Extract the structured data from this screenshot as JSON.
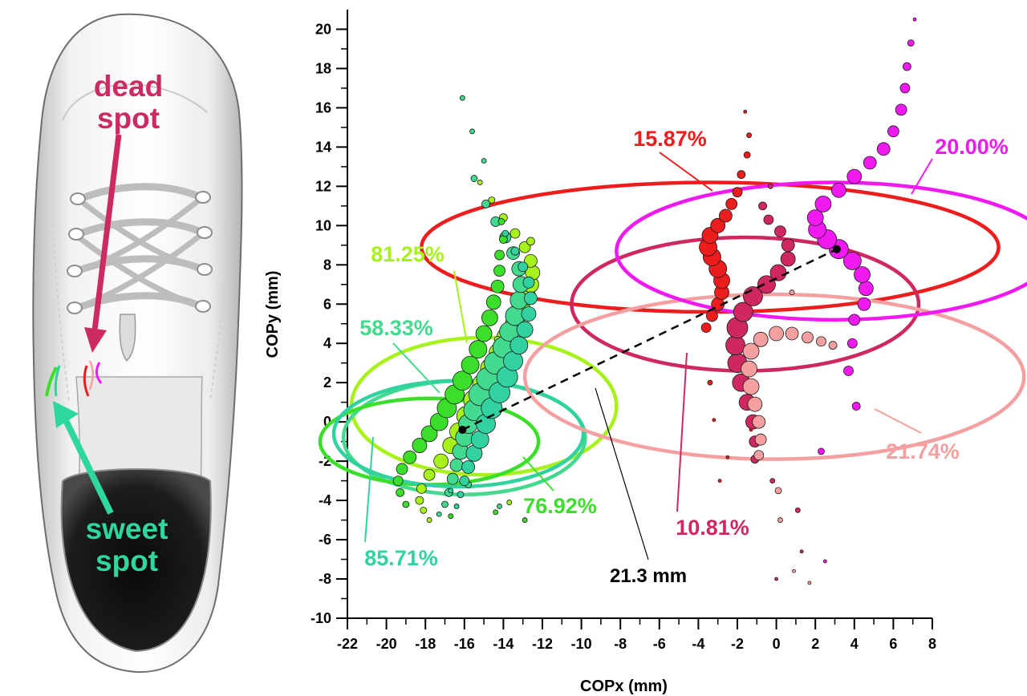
{
  "shoe_panel": {
    "dead_spot_label": [
      "dead",
      "spot"
    ],
    "sweet_spot_label": [
      "sweet",
      "spot"
    ],
    "dead_color": "#cc2a62",
    "sweet_color": "#2fd7a0"
  },
  "chart_data": {
    "type": "scatter",
    "title": "",
    "xlabel": "COPx (mm)",
    "ylabel": "COPy (mm)",
    "xlim": [
      -22,
      8
    ],
    "ylim": [
      -10,
      21
    ],
    "x_ticks": [
      -22,
      -20,
      -18,
      -16,
      -14,
      -12,
      -10,
      -8,
      -6,
      -4,
      -2,
      0,
      2,
      4,
      6,
      8
    ],
    "y_ticks": [
      -10,
      -8,
      -6,
      -4,
      -2,
      0,
      2,
      4,
      6,
      8,
      10,
      12,
      14,
      16,
      18,
      20
    ],
    "grid": false,
    "distance_annotation": {
      "label": "21.3 mm",
      "from": [
        -16.1,
        -0.4
      ],
      "to": [
        3.1,
        8.8
      ]
    },
    "series": [
      {
        "color": "#a6f21a",
        "points": [
          [
            -17.8,
            -5.0
          ],
          [
            -18.1,
            -4.5
          ],
          [
            -18.3,
            -4.0
          ],
          [
            -18.2,
            -3.4
          ],
          [
            -17.8,
            -2.7
          ],
          [
            -17.2,
            -2.0
          ],
          [
            -16.7,
            -1.2
          ],
          [
            -16.3,
            -0.5
          ],
          [
            -15.9,
            0.3
          ],
          [
            -15.5,
            1.1
          ],
          [
            -15.0,
            1.9
          ],
          [
            -14.6,
            2.7
          ],
          [
            -14.2,
            3.5
          ],
          [
            -13.8,
            4.3
          ],
          [
            -13.4,
            5.0
          ],
          [
            -13.1,
            5.7
          ],
          [
            -12.8,
            6.4
          ],
          [
            -12.6,
            7.0
          ],
          [
            -12.5,
            7.6
          ],
          [
            -12.6,
            8.2
          ],
          [
            -12.9,
            8.9
          ],
          [
            -13.4,
            9.6
          ],
          [
            -14.0,
            10.4
          ],
          [
            -14.6,
            11.3
          ],
          [
            -15.2,
            12.2
          ],
          [
            -14.3,
            4.2
          ],
          [
            -13.7,
            -4.1
          ],
          [
            -12.6,
            9.2
          ]
        ],
        "sizes": [
          3,
          4,
          5,
          6,
          7,
          9,
          10,
          11,
          12,
          13,
          14,
          14,
          13,
          13,
          12,
          12,
          11,
          10,
          9,
          8,
          7,
          6,
          5,
          4,
          3,
          4,
          3,
          5
        ],
        "ellipse": {
          "cx": -15.0,
          "cy": 0.8,
          "rx": 6.8,
          "ry": 3.5
        },
        "percent": "81.25%",
        "percent_color": "#a6f21a"
      },
      {
        "color": "#43d98f",
        "points": [
          [
            -17.3,
            -4.7
          ],
          [
            -17.0,
            -4.2
          ],
          [
            -16.8,
            -3.6
          ],
          [
            -16.6,
            -2.9
          ],
          [
            -16.4,
            -2.2
          ],
          [
            -16.2,
            -1.5
          ],
          [
            -16.0,
            -0.8
          ],
          [
            -15.8,
            -0.1
          ],
          [
            -15.5,
            0.6
          ],
          [
            -15.2,
            1.4
          ],
          [
            -14.8,
            2.2
          ],
          [
            -14.4,
            3.0
          ],
          [
            -14.0,
            3.8
          ],
          [
            -13.7,
            4.6
          ],
          [
            -13.4,
            5.4
          ],
          [
            -13.2,
            6.2
          ],
          [
            -13.1,
            7.0
          ],
          [
            -13.2,
            7.8
          ],
          [
            -13.5,
            8.6
          ],
          [
            -13.9,
            9.4
          ],
          [
            -14.4,
            10.2
          ],
          [
            -14.9,
            11.1
          ],
          [
            -15.5,
            12.4
          ],
          [
            -15.6,
            14.8
          ],
          [
            -16.1,
            16.5
          ],
          [
            -15.0,
            13.3
          ],
          [
            -14.2,
            -4.3
          ],
          [
            -15.8,
            -3.2
          ]
        ],
        "sizes": [
          3,
          4,
          5,
          7,
          8,
          10,
          11,
          12,
          13,
          14,
          14,
          14,
          13,
          12,
          12,
          11,
          10,
          9,
          8,
          7,
          6,
          5,
          4,
          3,
          3,
          3,
          3,
          4
        ],
        "ellipse": {
          "cx": -16.0,
          "cy": -0.8,
          "rx": 6.2,
          "ry": 2.9
        },
        "percent": "58.33%",
        "percent_color": "#43d98f"
      },
      {
        "color": "#3bdf2a",
        "points": [
          [
            -19.0,
            -4.2
          ],
          [
            -19.3,
            -3.6
          ],
          [
            -19.4,
            -3.0
          ],
          [
            -19.2,
            -2.4
          ],
          [
            -18.8,
            -1.8
          ],
          [
            -18.3,
            -1.2
          ],
          [
            -17.8,
            -0.6
          ],
          [
            -17.3,
            0.0
          ],
          [
            -16.9,
            0.7
          ],
          [
            -16.5,
            1.4
          ],
          [
            -16.1,
            2.1
          ],
          [
            -15.7,
            2.9
          ],
          [
            -15.3,
            3.7
          ],
          [
            -15.0,
            4.5
          ],
          [
            -14.7,
            5.3
          ],
          [
            -14.5,
            6.1
          ],
          [
            -14.3,
            6.9
          ],
          [
            -14.2,
            7.7
          ],
          [
            -14.2,
            8.5
          ],
          [
            -14.0,
            9.3
          ],
          [
            -14.1,
            10.2
          ],
          [
            -14.4,
            -4.6
          ],
          [
            -12.9,
            -5.0
          ],
          [
            -16.7,
            -4.8
          ]
        ],
        "sizes": [
          4,
          5,
          6,
          7,
          8,
          9,
          10,
          11,
          12,
          12,
          12,
          11,
          11,
          10,
          10,
          9,
          8,
          7,
          6,
          5,
          4,
          3,
          3,
          3
        ],
        "ellipse": {
          "cx": -17.8,
          "cy": -1.0,
          "rx": 5.6,
          "ry": 2.2
        },
        "percent": "76.92%",
        "percent_color": "#3bdf2a"
      },
      {
        "color": "#32d2a0",
        "points": [
          [
            -16.4,
            -4.3
          ],
          [
            -16.2,
            -3.7
          ],
          [
            -16.0,
            -3.0
          ],
          [
            -15.8,
            -2.3
          ],
          [
            -15.5,
            -1.6
          ],
          [
            -15.2,
            -0.9
          ],
          [
            -14.9,
            -0.1
          ],
          [
            -14.6,
            0.7
          ],
          [
            -14.2,
            1.5
          ],
          [
            -13.8,
            2.3
          ],
          [
            -13.5,
            3.1
          ],
          [
            -13.2,
            3.9
          ],
          [
            -12.9,
            4.7
          ],
          [
            -12.7,
            5.5
          ],
          [
            -12.6,
            6.3
          ],
          [
            -12.7,
            7.1
          ],
          [
            -13.0,
            7.9
          ],
          [
            -13.4,
            8.7
          ],
          [
            -13.9,
            9.6
          ],
          [
            -16.7,
            -3.5
          ]
        ],
        "sizes": [
          3,
          4,
          6,
          8,
          10,
          11,
          12,
          13,
          13,
          13,
          12,
          11,
          10,
          9,
          8,
          7,
          6,
          5,
          4,
          3
        ],
        "ellipse": {
          "cx": -16.3,
          "cy": -0.6,
          "rx": 6.4,
          "ry": 2.7
        },
        "percent": "85.71%",
        "percent_color": "#32d2a0"
      },
      {
        "color": "#ee1d1d",
        "points": [
          [
            -3.3,
            5.4
          ],
          [
            -3.0,
            6.0
          ],
          [
            -2.8,
            6.6
          ],
          [
            -2.8,
            7.2
          ],
          [
            -3.0,
            7.8
          ],
          [
            -3.3,
            8.4
          ],
          [
            -3.5,
            8.9
          ],
          [
            -3.4,
            9.5
          ],
          [
            -3.0,
            10.0
          ],
          [
            -2.6,
            10.5
          ],
          [
            -2.3,
            11.1
          ],
          [
            -2.0,
            11.7
          ],
          [
            -1.8,
            12.6
          ],
          [
            -1.5,
            13.6
          ],
          [
            -1.4,
            14.6
          ],
          [
            -3.6,
            4.8
          ],
          [
            -3.4,
            2.0
          ],
          [
            -3.2,
            0.1
          ],
          [
            -2.5,
            -1.8
          ],
          [
            -2.9,
            -3.0
          ],
          [
            -1.6,
            15.8
          ],
          [
            -1.3,
            -0.4
          ]
        ],
        "sizes": [
          7,
          8,
          9,
          10,
          11,
          11,
          11,
          10,
          9,
          8,
          7,
          6,
          5,
          4,
          3,
          6,
          3,
          2,
          2,
          2,
          2,
          2
        ],
        "ellipse": {
          "cx": -3.4,
          "cy": 8.9,
          "rx": 14.8,
          "ry": 3.3
        },
        "percent": "15.87%",
        "percent_color": "#ee1d1d"
      },
      {
        "color": "#cf2860",
        "points": [
          [
            -1.1,
            -1.9
          ],
          [
            -1.1,
            -1.0
          ],
          [
            -1.2,
            0.0
          ],
          [
            -1.5,
            1.0
          ],
          [
            -1.8,
            2.0
          ],
          [
            -2.0,
            3.0
          ],
          [
            -2.1,
            3.9
          ],
          [
            -2.0,
            4.8
          ],
          [
            -1.7,
            5.6
          ],
          [
            -1.2,
            6.4
          ],
          [
            -0.5,
            7.0
          ],
          [
            0.1,
            7.6
          ],
          [
            0.6,
            8.3
          ],
          [
            0.6,
            9.0
          ],
          [
            0.2,
            9.7
          ],
          [
            -0.4,
            10.3
          ],
          [
            -0.7,
            11.0
          ],
          [
            -0.3,
            12.0
          ],
          [
            -0.2,
            -3.0
          ],
          [
            1.1,
            -4.5
          ],
          [
            1.3,
            -6.6
          ],
          [
            0.0,
            -8.0
          ]
        ],
        "sizes": [
          5,
          7,
          9,
          10,
          11,
          12,
          12,
          13,
          12,
          12,
          11,
          10,
          9,
          8,
          7,
          6,
          5,
          3,
          3,
          3,
          2,
          2
        ],
        "ellipse": {
          "cx": -1.6,
          "cy": 6.0,
          "rx": 8.9,
          "ry": 3.4
        },
        "percent": "10.81%",
        "percent_color": "#cf2860"
      },
      {
        "color": "#f4a0a0",
        "points": [
          [
            -0.9,
            -1.7
          ],
          [
            -0.8,
            -0.9
          ],
          [
            -0.9,
            0.0
          ],
          [
            -1.1,
            0.9
          ],
          [
            -1.3,
            1.8
          ],
          [
            -1.4,
            2.7
          ],
          [
            -1.3,
            3.6
          ],
          [
            -0.8,
            4.2
          ],
          [
            0.0,
            4.5
          ],
          [
            0.8,
            4.5
          ],
          [
            1.6,
            4.3
          ],
          [
            2.3,
            4.1
          ],
          [
            2.9,
            3.9
          ],
          [
            0.8,
            6.6
          ],
          [
            0.1,
            -3.5
          ],
          [
            0.2,
            -5.0
          ],
          [
            0.9,
            -7.6
          ],
          [
            1.7,
            -8.2
          ]
        ],
        "sizes": [
          6,
          7,
          8,
          9,
          10,
          10,
          10,
          9,
          9,
          8,
          7,
          6,
          5,
          3,
          4,
          3,
          2,
          2
        ],
        "ellipse": {
          "cx": -0.1,
          "cy": 2.3,
          "rx": 12.8,
          "ry": 4.2
        },
        "percent": "21.74%",
        "percent_color": "#f4a0a0"
      },
      {
        "color": "#f01af0",
        "points": [
          [
            4.0,
            5.2
          ],
          [
            4.5,
            6.0
          ],
          [
            4.6,
            6.8
          ],
          [
            4.4,
            7.5
          ],
          [
            3.9,
            8.2
          ],
          [
            3.2,
            8.8
          ],
          [
            2.6,
            9.3
          ],
          [
            2.1,
            9.8
          ],
          [
            2.0,
            10.4
          ],
          [
            2.4,
            11.1
          ],
          [
            3.2,
            11.8
          ],
          [
            4.0,
            12.5
          ],
          [
            4.8,
            13.2
          ],
          [
            5.5,
            13.9
          ],
          [
            6.0,
            14.8
          ],
          [
            6.4,
            15.9
          ],
          [
            6.6,
            17.0
          ],
          [
            6.7,
            18.1
          ],
          [
            6.9,
            19.3
          ],
          [
            7.1,
            20.5
          ],
          [
            3.9,
            4.0
          ],
          [
            3.7,
            2.6
          ],
          [
            4.1,
            0.8
          ],
          [
            2.3,
            -1.5
          ],
          [
            2.5,
            -7.1
          ]
        ],
        "sizes": [
          7,
          8,
          9,
          10,
          11,
          12,
          12,
          11,
          10,
          10,
          9,
          9,
          8,
          8,
          7,
          7,
          6,
          5,
          4,
          2,
          6,
          6,
          5,
          4,
          2
        ],
        "ellipse": {
          "cx": 3.0,
          "cy": 8.7,
          "rx": 11.2,
          "ry": 3.5
        },
        "percent": "20.00%",
        "percent_color": "#f01af0"
      }
    ]
  }
}
